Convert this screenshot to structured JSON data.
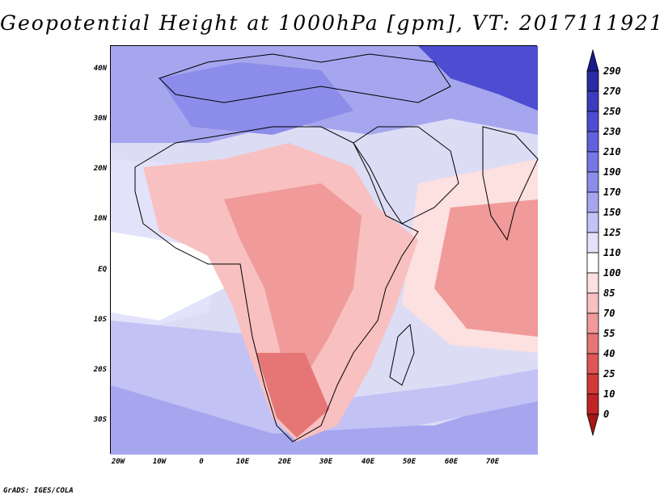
{
  "title": "Geopotential Height at 1000hPa [gpm], VT: 2017111921",
  "credit": "GrADS: IGES/COLA",
  "lat_labels": [
    "40N",
    "30N",
    "20N",
    "10N",
    "EQ",
    "10S",
    "20S",
    "30S"
  ],
  "lon_labels": [
    "20W",
    "10W",
    "0",
    "10E",
    "20E",
    "30E",
    "40E",
    "50E",
    "60E",
    "70E"
  ],
  "colorbar": {
    "labels": [
      "290",
      "270",
      "250",
      "230",
      "210",
      "190",
      "170",
      "150",
      "125",
      "110",
      "100",
      "85",
      "70",
      "55",
      "40",
      "25",
      "10",
      "0"
    ],
    "colors": [
      "#1a1a8c",
      "#2b2ba6",
      "#3c3cbf",
      "#4d4dd1",
      "#6161dc",
      "#7676e4",
      "#8c8cea",
      "#a6a6ef",
      "#c2c2f5",
      "#e2e2fb",
      "#ffffff",
      "#fde0e0",
      "#f8c0c0",
      "#f09a9a",
      "#e67676",
      "#de5656",
      "#d23a3a",
      "#c02424",
      "#a51616"
    ]
  },
  "map_layers": {
    "background": "#dcdcf5",
    "ocean_south": "#c2c2f5",
    "ocean_north_white": "#e2e2fb",
    "land_high": "#f8c0c0",
    "land_mid": "#f09a9a",
    "land_low": "#e67676",
    "arabian_sea": "#f8c0c0",
    "north_blue": "#8c8cea",
    "top_right_dark": "#3c3cbf",
    "coastline": "#000000"
  }
}
